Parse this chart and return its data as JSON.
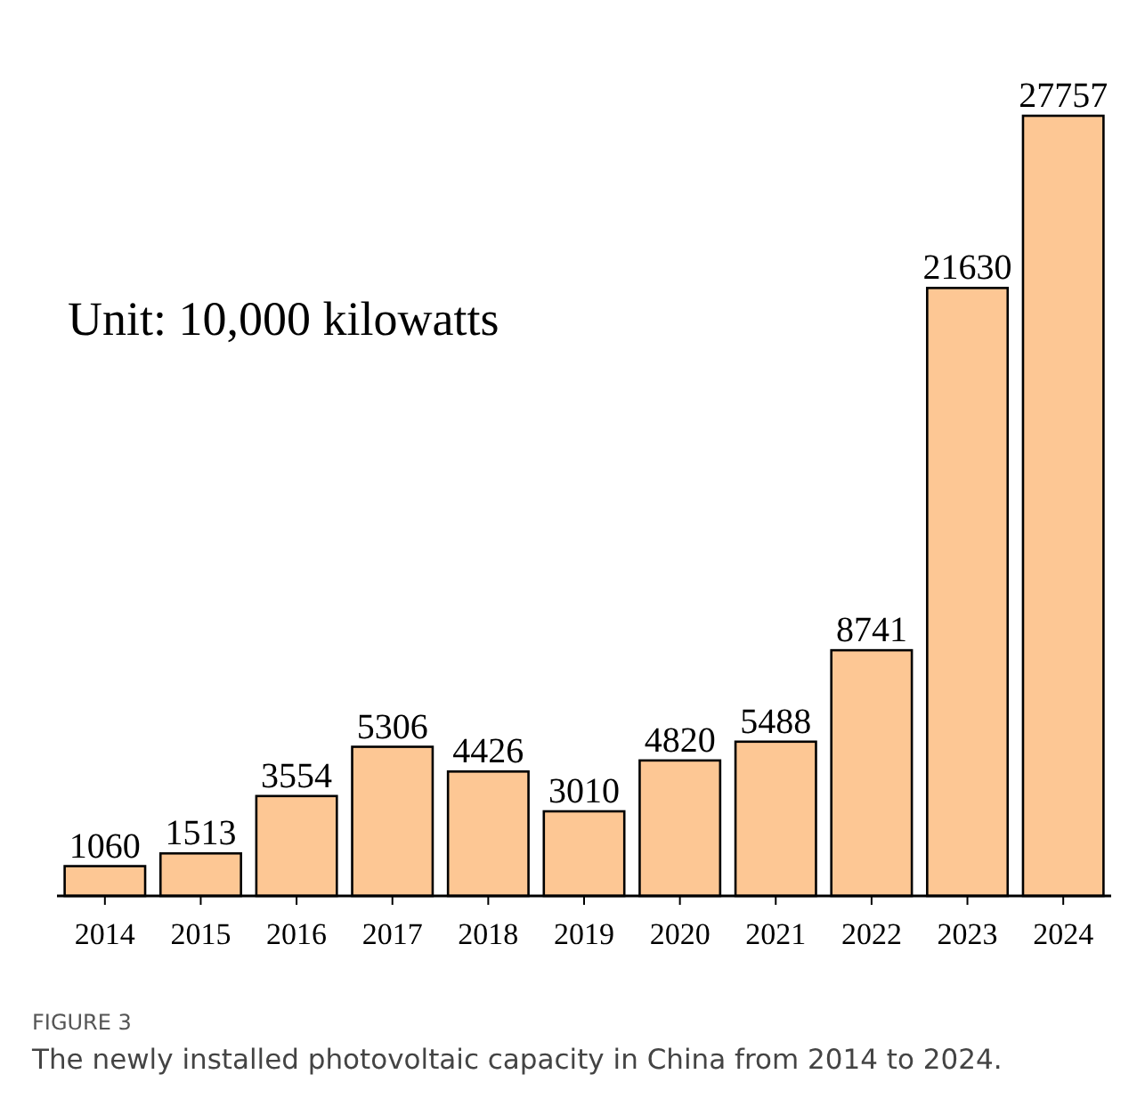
{
  "chart_data": {
    "type": "bar",
    "title": "FIGURE 3",
    "subtitle": "The newly installed photovoltaic capacity in China from 2014 to 2024.",
    "ylabel": "Unit: 10,000 kilowatts",
    "categories": [
      "2014",
      "2015",
      "2016",
      "2017",
      "2018",
      "2019",
      "2020",
      "2021",
      "2022",
      "2023",
      "2024"
    ],
    "values": [
      1060,
      1513,
      3554,
      5306,
      4426,
      3010,
      4820,
      5488,
      8741,
      21630,
      27757
    ],
    "color": "#fdc794",
    "data_labels": true
  }
}
